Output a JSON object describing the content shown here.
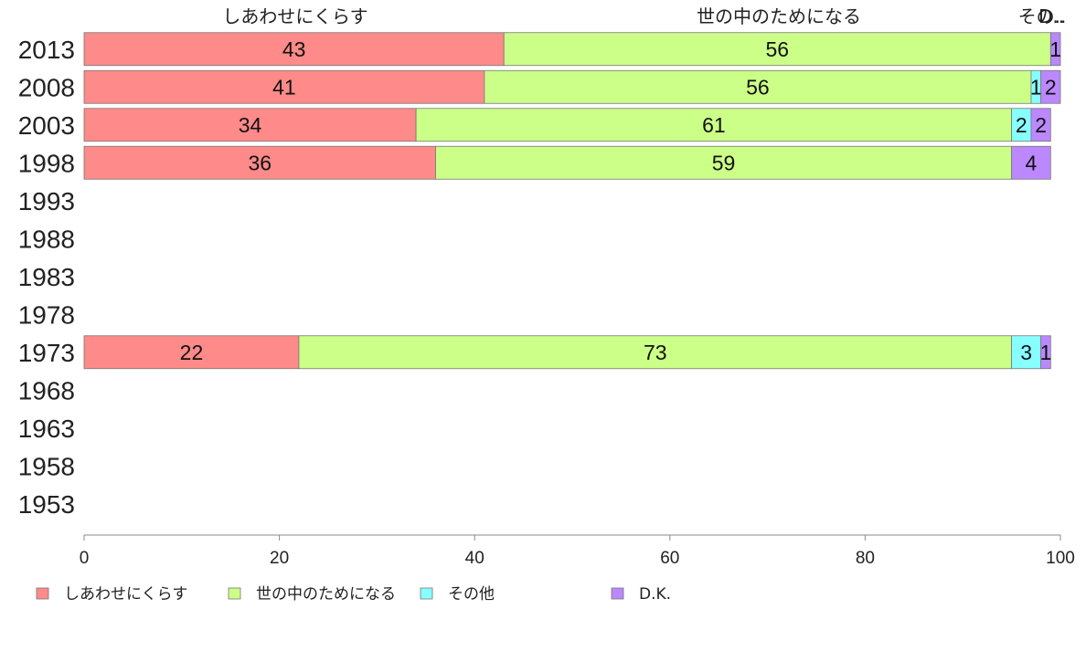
{
  "chart_data": {
    "type": "bar",
    "orientation": "horizontal",
    "stacked": true,
    "categories": [
      "2013",
      "2008",
      "2003",
      "1998",
      "1993",
      "1988",
      "1983",
      "1978",
      "1973",
      "1968",
      "1963",
      "1958",
      "1953"
    ],
    "series": [
      {
        "name": "しあわせにくらす",
        "color": "#ff8a8a",
        "values": [
          43,
          41,
          34,
          36,
          null,
          null,
          null,
          null,
          22,
          null,
          null,
          null,
          null
        ]
      },
      {
        "name": "世の中のためになる",
        "color": "#ccff88",
        "values": [
          56,
          56,
          61,
          59,
          null,
          null,
          null,
          null,
          73,
          null,
          null,
          null,
          null
        ]
      },
      {
        "name": "その他",
        "color": "#88ffff",
        "values": [
          0,
          1,
          2,
          0,
          null,
          null,
          null,
          null,
          3,
          null,
          null,
          null,
          null
        ]
      },
      {
        "name": "D.K.",
        "color": "#bb88ff",
        "values": [
          1,
          2,
          2,
          4,
          null,
          null,
          null,
          null,
          1,
          null,
          null,
          null,
          null
        ]
      }
    ],
    "column_headers": [
      "しあわせにくらす",
      "世の中のためになる",
      "その..",
      "D.."
    ],
    "xticks": [
      "0",
      "20",
      "40",
      "60",
      "80",
      "100"
    ],
    "xlim": [
      0,
      100
    ],
    "grid": false,
    "legend_position": "bottom-left"
  }
}
